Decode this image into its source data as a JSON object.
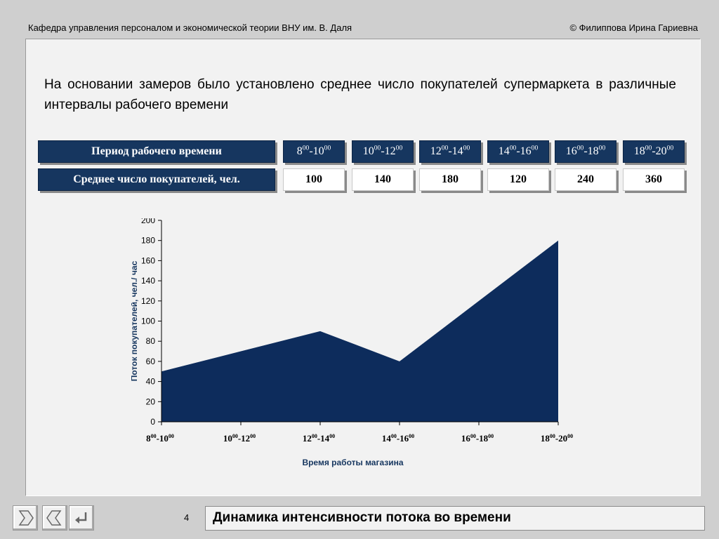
{
  "header": {
    "left": "Кафедра управления персоналом и экономической теории ВНУ им. В. Даля",
    "right": "© Филиппова Ирина Гариевна"
  },
  "intro": "На основании замеров было установлено среднее число покупателей супермаркета в различные интервалы рабочего времени",
  "table": {
    "row1_label": "Период рабочего времени",
    "row2_label": "Среднее число покупателей, чел.",
    "periods": [
      {
        "a": "8",
        "b": "00",
        "c": "-10",
        "d": "00"
      },
      {
        "a": "10",
        "b": "00",
        "c": "-12",
        "d": "00"
      },
      {
        "a": "12",
        "b": "00",
        "c": "-14",
        "d": "00"
      },
      {
        "a": "14",
        "b": "00",
        "c": "-16",
        "d": "00"
      },
      {
        "a": "16",
        "b": "00",
        "c": "-18",
        "d": "00"
      },
      {
        "a": "18",
        "b": "00",
        "c": "-20",
        "d": "00"
      }
    ],
    "values": [
      "100",
      "140",
      "180",
      "120",
      "240",
      "360"
    ]
  },
  "chart_data": {
    "type": "area",
    "categories": [
      "8⁰⁰-10⁰⁰",
      "10⁰⁰-12⁰⁰",
      "12⁰⁰-14⁰⁰",
      "14⁰⁰-16⁰⁰",
      "16⁰⁰-18⁰⁰",
      "18⁰⁰-20⁰⁰"
    ],
    "x_labels": [
      {
        "a": "8",
        "b": "00",
        "c": "-10",
        "d": "00"
      },
      {
        "a": "10",
        "b": "00",
        "c": "-12",
        "d": "00"
      },
      {
        "a": "12",
        "b": "00",
        "c": "-14",
        "d": "00"
      },
      {
        "a": "14",
        "b": "00",
        "c": "-16",
        "d": "00"
      },
      {
        "a": "16",
        "b": "00",
        "c": "-18",
        "d": "00"
      },
      {
        "a": "18",
        "b": "00",
        "c": "-20",
        "d": "00"
      }
    ],
    "values": [
      50,
      70,
      90,
      60,
      120,
      180
    ],
    "yticks": [
      "0",
      "20",
      "40",
      "60",
      "80",
      "100",
      "120",
      "140",
      "160",
      "180",
      "200"
    ],
    "ylim": [
      0,
      200
    ],
    "ylabel": "Поток покупателей, чел./ час",
    "xlabel": "Время работы магазина",
    "color": "#0d2c5c"
  },
  "footer": {
    "page": "4",
    "title": "Динамика интенсивности потока во времени"
  },
  "nav": {
    "next": "next-icon",
    "prev": "prev-icon",
    "return": "return-icon"
  }
}
